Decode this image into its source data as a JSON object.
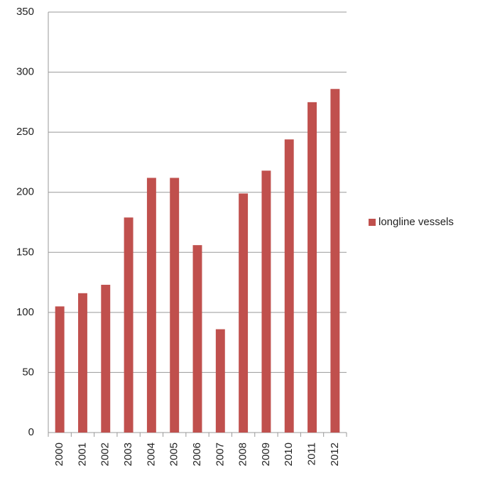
{
  "chart_data": {
    "type": "bar",
    "categories": [
      "2000",
      "2001",
      "2002",
      "2003",
      "2004",
      "2005",
      "2006",
      "2007",
      "2008",
      "2009",
      "2010",
      "2011",
      "2012"
    ],
    "series": [
      {
        "name": "longline vessels",
        "color": "#c0504d",
        "values": [
          105,
          116,
          123,
          179,
          212,
          212,
          156,
          86,
          199,
          218,
          244,
          275,
          286
        ]
      }
    ],
    "ylim": [
      0,
      350
    ],
    "yticks": [
      0,
      50,
      100,
      150,
      200,
      250,
      300,
      350
    ],
    "grid": true,
    "legend": "right"
  }
}
